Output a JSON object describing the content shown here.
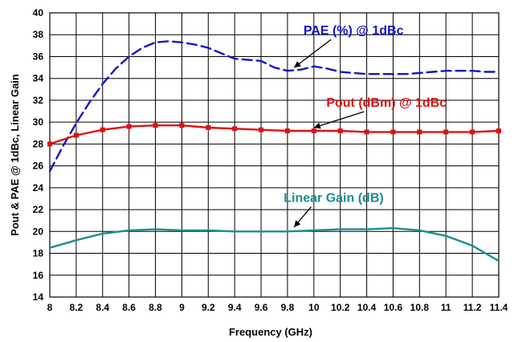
{
  "chart_data": {
    "type": "line",
    "title": "",
    "xlabel": "Frequency (GHz)",
    "ylabel": "Pout  & PAE @ 1dBc, Linear  Gain",
    "xlim": [
      8,
      11.4
    ],
    "ylim": [
      14,
      40
    ],
    "x_ticks": [
      8,
      8.2,
      8.4,
      8.6,
      8.8,
      9,
      9.2,
      9.4,
      9.6,
      9.8,
      10,
      10.2,
      10.4,
      10.6,
      10.8,
      11,
      11.2,
      11.4
    ],
    "x_tick_labels": [
      "8",
      "8.2",
      "8.4",
      "8.6",
      "8.8",
      "9",
      "9.2",
      "9.4",
      "9.6",
      "9.8",
      "10",
      "10.2",
      "10.4",
      "10.6",
      "10.8",
      "11",
      "11.2",
      "11.4"
    ],
    "y_ticks": [
      14,
      16,
      18,
      20,
      22,
      24,
      26,
      28,
      30,
      32,
      34,
      36,
      38,
      40
    ],
    "y_tick_labels": [
      "14",
      "16",
      "18",
      "20",
      "22",
      "24",
      "26",
      "28",
      "30",
      "32",
      "34",
      "36",
      "38",
      "40"
    ],
    "grid": true,
    "series": [
      {
        "name": "PAE (%) @ 1dBc",
        "color": "#1515c8",
        "style": "dashed",
        "markers": false,
        "x": [
          8,
          8.1,
          8.2,
          8.3,
          8.4,
          8.5,
          8.6,
          8.7,
          8.8,
          8.9,
          9,
          9.1,
          9.2,
          9.3,
          9.4,
          9.5,
          9.6,
          9.7,
          9.8,
          9.9,
          10,
          10.1,
          10.2,
          10.3,
          10.4,
          10.5,
          10.6,
          10.7,
          10.8,
          10.9,
          11,
          11.1,
          11.2,
          11.3,
          11.4
        ],
        "y": [
          25.5,
          27.8,
          29.9,
          31.8,
          33.5,
          34.9,
          36.0,
          36.8,
          37.3,
          37.4,
          37.3,
          37.1,
          36.8,
          36.3,
          35.8,
          35.7,
          35.6,
          35.0,
          34.7,
          34.8,
          35.1,
          34.9,
          34.6,
          34.5,
          34.4,
          34.4,
          34.4,
          34.4,
          34.5,
          34.6,
          34.7,
          34.7,
          34.7,
          34.6,
          34.6
        ]
      },
      {
        "name": "Pout (dBm) @ 1dBc",
        "color": "#e01010",
        "style": "solid",
        "markers": true,
        "x": [
          8,
          8.2,
          8.4,
          8.6,
          8.8,
          9,
          9.2,
          9.4,
          9.6,
          9.8,
          10,
          10.2,
          10.4,
          10.6,
          10.8,
          11,
          11.2,
          11.4
        ],
        "y": [
          28.0,
          28.8,
          29.3,
          29.6,
          29.7,
          29.7,
          29.5,
          29.4,
          29.3,
          29.2,
          29.2,
          29.2,
          29.1,
          29.1,
          29.1,
          29.1,
          29.1,
          29.2
        ]
      },
      {
        "name": "Linear Gain (dB)",
        "color": "#1a8f8f",
        "style": "solid",
        "markers": false,
        "x": [
          8,
          8.2,
          8.4,
          8.6,
          8.8,
          9,
          9.2,
          9.4,
          9.6,
          9.8,
          10,
          10.2,
          10.4,
          10.6,
          10.8,
          11,
          11.2,
          11.4
        ],
        "y": [
          18.5,
          19.2,
          19.8,
          20.1,
          20.2,
          20.1,
          20.1,
          20.0,
          20.0,
          20.0,
          20.1,
          20.2,
          20.2,
          20.3,
          20.1,
          19.6,
          18.7,
          17.3
        ]
      }
    ],
    "annotations": [
      {
        "text": "PAE (%) @ 1dBc",
        "color": "#1515c8",
        "anchor_x": 9.85,
        "anchor_y": 34.7,
        "label_x": 10.3,
        "label_y": 38.0
      },
      {
        "text": "Pout (dBm) @ 1dBc",
        "color": "#e01010",
        "anchor_x": 10.0,
        "anchor_y": 29.2,
        "label_x": 10.55,
        "label_y": 31.4
      },
      {
        "text": "Linear Gain (dB)",
        "color": "#1a8f8f",
        "anchor_x": 9.85,
        "anchor_y": 20.1,
        "label_x": 10.15,
        "label_y": 22.7
      }
    ]
  }
}
